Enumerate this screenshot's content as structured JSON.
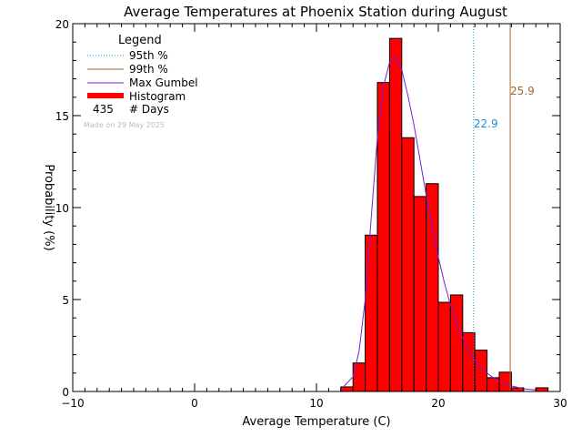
{
  "chart_data": {
    "type": "bar",
    "title": "Average Temperatures at Phoenix Station during August",
    "xlabel": "Average Temperature (C)",
    "ylabel": "Probability (%)",
    "xlim": [
      -10,
      30
    ],
    "ylim": [
      0,
      20
    ],
    "x_ticks": [
      -10,
      0,
      10,
      20,
      30
    ],
    "y_ticks": [
      0,
      5,
      10,
      15,
      20
    ],
    "bin_width": 1,
    "bins": [
      {
        "x": 12,
        "value": 0.25
      },
      {
        "x": 13,
        "value": 1.55
      },
      {
        "x": 14,
        "value": 8.5
      },
      {
        "x": 15,
        "value": 16.8
      },
      {
        "x": 16,
        "value": 19.2
      },
      {
        "x": 17,
        "value": 13.8
      },
      {
        "x": 18,
        "value": 10.6
      },
      {
        "x": 19,
        "value": 11.3
      },
      {
        "x": 20,
        "value": 4.85
      },
      {
        "x": 21,
        "value": 5.25
      },
      {
        "x": 22,
        "value": 3.2
      },
      {
        "x": 23,
        "value": 2.25
      },
      {
        "x": 24,
        "value": 0.75
      },
      {
        "x": 25,
        "value": 1.05
      },
      {
        "x": 26,
        "value": 0.2
      },
      {
        "x": 27,
        "value": 0.0
      },
      {
        "x": 28,
        "value": 0.2
      }
    ],
    "gumbel_curve": {
      "x": [
        12.0,
        13.0,
        13.5,
        14.0,
        14.5,
        15.0,
        15.5,
        16.0,
        16.5,
        17.0,
        17.5,
        18.0,
        18.5,
        19.0,
        19.5,
        20.0,
        20.5,
        21.0,
        21.5,
        22.0,
        22.5,
        23.0,
        23.5,
        24.0,
        24.5,
        25.0,
        25.5,
        26.0,
        27.0,
        28.0
      ],
      "y": [
        0.1,
        0.8,
        2.2,
        5.0,
        9.5,
        13.8,
        16.6,
        17.9,
        18.2,
        17.5,
        16.1,
        14.5,
        12.6,
        10.7,
        8.9,
        7.3,
        5.9,
        4.7,
        3.7,
        2.9,
        2.2,
        1.7,
        1.3,
        1.0,
        0.75,
        0.55,
        0.4,
        0.3,
        0.15,
        0.08
      ]
    },
    "percentiles": [
      {
        "name": "95th %",
        "value": 22.9,
        "label": "22.9",
        "color": "#1a8fd8"
      },
      {
        "name": "99th %",
        "value": 25.9,
        "label": "25.9",
        "color": "#a0662a"
      }
    ],
    "colors": {
      "histogram": "#ff0000",
      "gumbel": "#7a1fd0",
      "p95": "#1a8fd8",
      "p99": "#a0662a"
    },
    "legend": {
      "title": "Legend",
      "items": [
        {
          "label": "95th %",
          "style": "dotted",
          "color": "#1a8fd8"
        },
        {
          "label": "99th %",
          "style": "solid",
          "color": "#a0662a"
        },
        {
          "label": "Max Gumbel",
          "style": "solid",
          "color": "#7a1fd0"
        },
        {
          "label": "Histogram",
          "style": "thick",
          "color": "#ff0000"
        }
      ],
      "days_count": "435",
      "days_label": "# Days",
      "placement": "top-left"
    },
    "made_on": "Made on 29 May 2025"
  }
}
